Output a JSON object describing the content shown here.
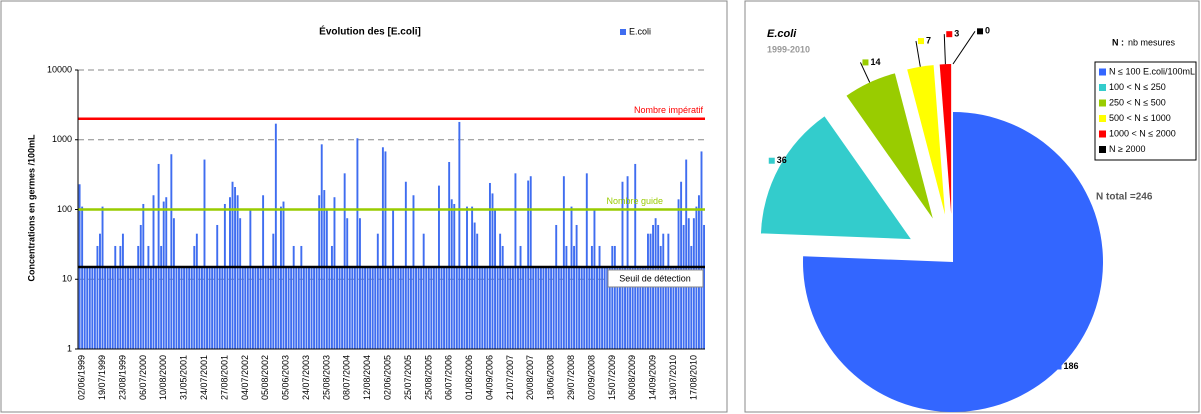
{
  "chart_data": [
    {
      "type": "bar",
      "title": "Évolution des [E.coli]",
      "y_label": "Concentrations en germes /100mL",
      "log_scale": true,
      "grid": true,
      "legend": "top-right",
      "series": [
        {
          "name": "E.coli",
          "color": "#3f6df0",
          "values": [
            230,
            110,
            15,
            15,
            15,
            15,
            15,
            30,
            45,
            110,
            15,
            15,
            15,
            15,
            30,
            15,
            30,
            45,
            15,
            15,
            15,
            15,
            15,
            30,
            60,
            120,
            15,
            30,
            15,
            160,
            15,
            450,
            30,
            130,
            150,
            15,
            620,
            75,
            15,
            15,
            15,
            15,
            15,
            15,
            15,
            30,
            45,
            15,
            15,
            520,
            15,
            15,
            15,
            15,
            60,
            15,
            15,
            120,
            15,
            150,
            250,
            210,
            160,
            75,
            15,
            15,
            15,
            100,
            15,
            15,
            15,
            15,
            160,
            15,
            15,
            15,
            45,
            1700,
            15,
            110,
            130,
            15,
            15,
            15,
            30,
            15,
            15,
            30,
            15,
            15,
            15,
            15,
            15,
            15,
            160,
            860,
            190,
            100,
            15,
            30,
            150,
            15,
            15,
            15,
            330,
            75,
            15,
            15,
            15,
            1050,
            75,
            15,
            15,
            15,
            15,
            15,
            15,
            45,
            15,
            780,
            680,
            15,
            15,
            100,
            15,
            15,
            15,
            15,
            250,
            15,
            15,
            160,
            15,
            15,
            15,
            45,
            15,
            15,
            15,
            15,
            15,
            220,
            15,
            15,
            15,
            480,
            140,
            120,
            15,
            1800,
            15,
            15,
            110,
            15,
            110,
            65,
            45,
            15,
            15,
            15,
            15,
            240,
            170,
            100,
            15,
            45,
            30,
            15,
            15,
            15,
            15,
            330,
            15,
            30,
            15,
            15,
            260,
            300,
            15,
            15,
            15,
            15,
            15,
            15,
            15,
            15,
            15,
            60,
            15,
            15,
            300,
            30,
            15,
            110,
            30,
            60,
            15,
            15,
            15,
            330,
            15,
            30,
            100,
            15,
            30,
            15,
            15,
            15,
            15,
            30,
            30,
            15,
            15,
            250,
            15,
            300,
            15,
            15,
            450,
            15,
            15,
            15,
            15,
            45,
            45,
            60,
            75,
            60,
            30,
            45,
            15,
            45,
            15,
            15,
            15,
            140,
            250,
            60,
            520,
            75,
            30,
            75,
            110,
            160,
            680,
            60
          ]
        }
      ],
      "categories": [
        "02/06/1999",
        null,
        null,
        null,
        null,
        null,
        null,
        null,
        "19/07/1999",
        null,
        null,
        null,
        null,
        null,
        null,
        null,
        "23/08/1999",
        null,
        null,
        null,
        null,
        null,
        null,
        null,
        "06/07/2000",
        null,
        null,
        null,
        null,
        null,
        null,
        null,
        "10/08/2000",
        null,
        null,
        null,
        null,
        null,
        null,
        null,
        "31/05/2001",
        null,
        null,
        null,
        null,
        null,
        null,
        null,
        "24/07/2001",
        null,
        null,
        null,
        null,
        null,
        null,
        null,
        "27/08/2001",
        null,
        null,
        null,
        null,
        null,
        null,
        null,
        "04/07/2002",
        null,
        null,
        null,
        null,
        null,
        null,
        null,
        "05/08/2002",
        null,
        null,
        null,
        null,
        null,
        null,
        null,
        "05/06/2003",
        null,
        null,
        null,
        null,
        null,
        null,
        null,
        "24/07/2003",
        null,
        null,
        null,
        null,
        null,
        null,
        null,
        "25/08/2003",
        null,
        null,
        null,
        null,
        null,
        null,
        null,
        "08/07/2004",
        null,
        null,
        null,
        null,
        null,
        null,
        null,
        "12/08/2004",
        null,
        null,
        null,
        null,
        null,
        null,
        null,
        "02/06/2005",
        null,
        null,
        null,
        null,
        null,
        null,
        null,
        "25/07/2005",
        null,
        null,
        null,
        null,
        null,
        null,
        null,
        "25/08/2005",
        null,
        null,
        null,
        null,
        null,
        null,
        null,
        "06/07/2006",
        null,
        null,
        null,
        null,
        null,
        null,
        null,
        "01/08/2006",
        null,
        null,
        null,
        null,
        null,
        null,
        null,
        "04/09/2006",
        null,
        null,
        null,
        null,
        null,
        null,
        null,
        "21/07/2007",
        null,
        null,
        null,
        null,
        null,
        null,
        null,
        "20/08/2007",
        null,
        null,
        null,
        null,
        null,
        null,
        null,
        "18/06/2008",
        null,
        null,
        null,
        null,
        null,
        null,
        null,
        "29/07/2008",
        null,
        null,
        null,
        null,
        null,
        null,
        null,
        "02/09/2008",
        null,
        null,
        null,
        null,
        null,
        null,
        null,
        "15/07/2009",
        null,
        null,
        null,
        null,
        null,
        null,
        null,
        "06/08/2009",
        null,
        null,
        null,
        null,
        null,
        null,
        null,
        "14/09/2009",
        null,
        null,
        null,
        null,
        null,
        null,
        null,
        "19/07/2010",
        null,
        null,
        null,
        null,
        null,
        null,
        null,
        "17/08/2010",
        null,
        null,
        null,
        null,
        null
      ],
      "ylim": [
        1,
        10000
      ],
      "yticks": [
        1,
        10,
        100,
        1000,
        10000
      ],
      "reference_lines": [
        {
          "label": "Nombre impératif",
          "value": 2000,
          "color": "#ff0000"
        },
        {
          "label": "Nombre guide",
          "value": 100,
          "color": "#99cc00"
        },
        {
          "label": "Seuil de détection",
          "value": 15,
          "color": "#000000"
        }
      ]
    },
    {
      "type": "pie",
      "title": "E.coli",
      "subtitle": "1999-2010",
      "legend_key": "N :",
      "legend_note": "nb mesures",
      "annotation": "N total =246",
      "categories": [
        "N ≤ 100 E.coli/100mL",
        "100 < N ≤ 250",
        "250 < N ≤ 500",
        "500 < N ≤ 1000",
        "1000 < N ≤ 2000",
        "N ≥ 2000"
      ],
      "values": [
        186,
        36,
        14,
        7,
        3,
        0
      ],
      "colors": [
        "#3366ff",
        "#33cccc",
        "#99cc00",
        "#ffff00",
        "#ff0000",
        "#000000"
      ]
    }
  ]
}
